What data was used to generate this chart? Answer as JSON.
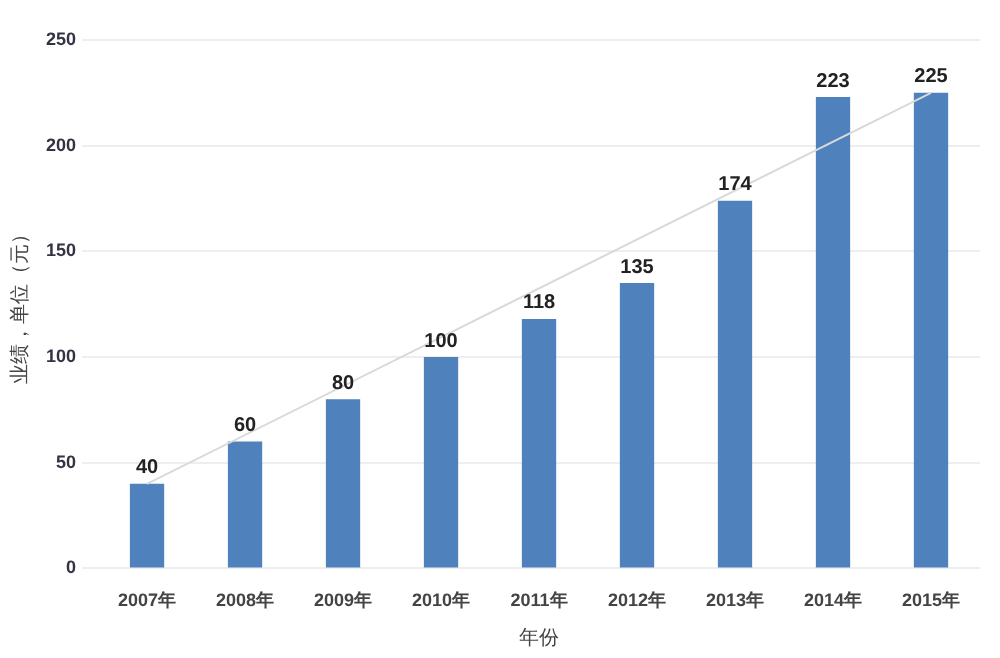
{
  "chart_data": {
    "type": "bar",
    "xlabel": "年份",
    "ylabel": "业绩，单位（元）",
    "categories": [
      "2007年",
      "2008年",
      "2009年",
      "2010年",
      "2011年",
      "2012年",
      "2013年",
      "2014年",
      "2015年"
    ],
    "series": [
      {
        "color": "#4f81bd",
        "values": [
          40,
          60,
          80,
          100,
          118,
          135,
          174,
          223,
          225
        ],
        "value_labels": [
          "40",
          "60",
          "80",
          "100",
          "118",
          "135",
          "174",
          "223",
          "225"
        ]
      },
      {
        "type": "line",
        "color": "#d9d9d9",
        "x": [
          "2007年",
          "2015年"
        ],
        "values": [
          40,
          225
        ]
      }
    ],
    "ylim": [
      0,
      250
    ],
    "yticks": [
      0,
      50,
      100,
      150,
      200,
      250
    ],
    "grid": "y",
    "legend": false,
    "marker": "none"
  }
}
